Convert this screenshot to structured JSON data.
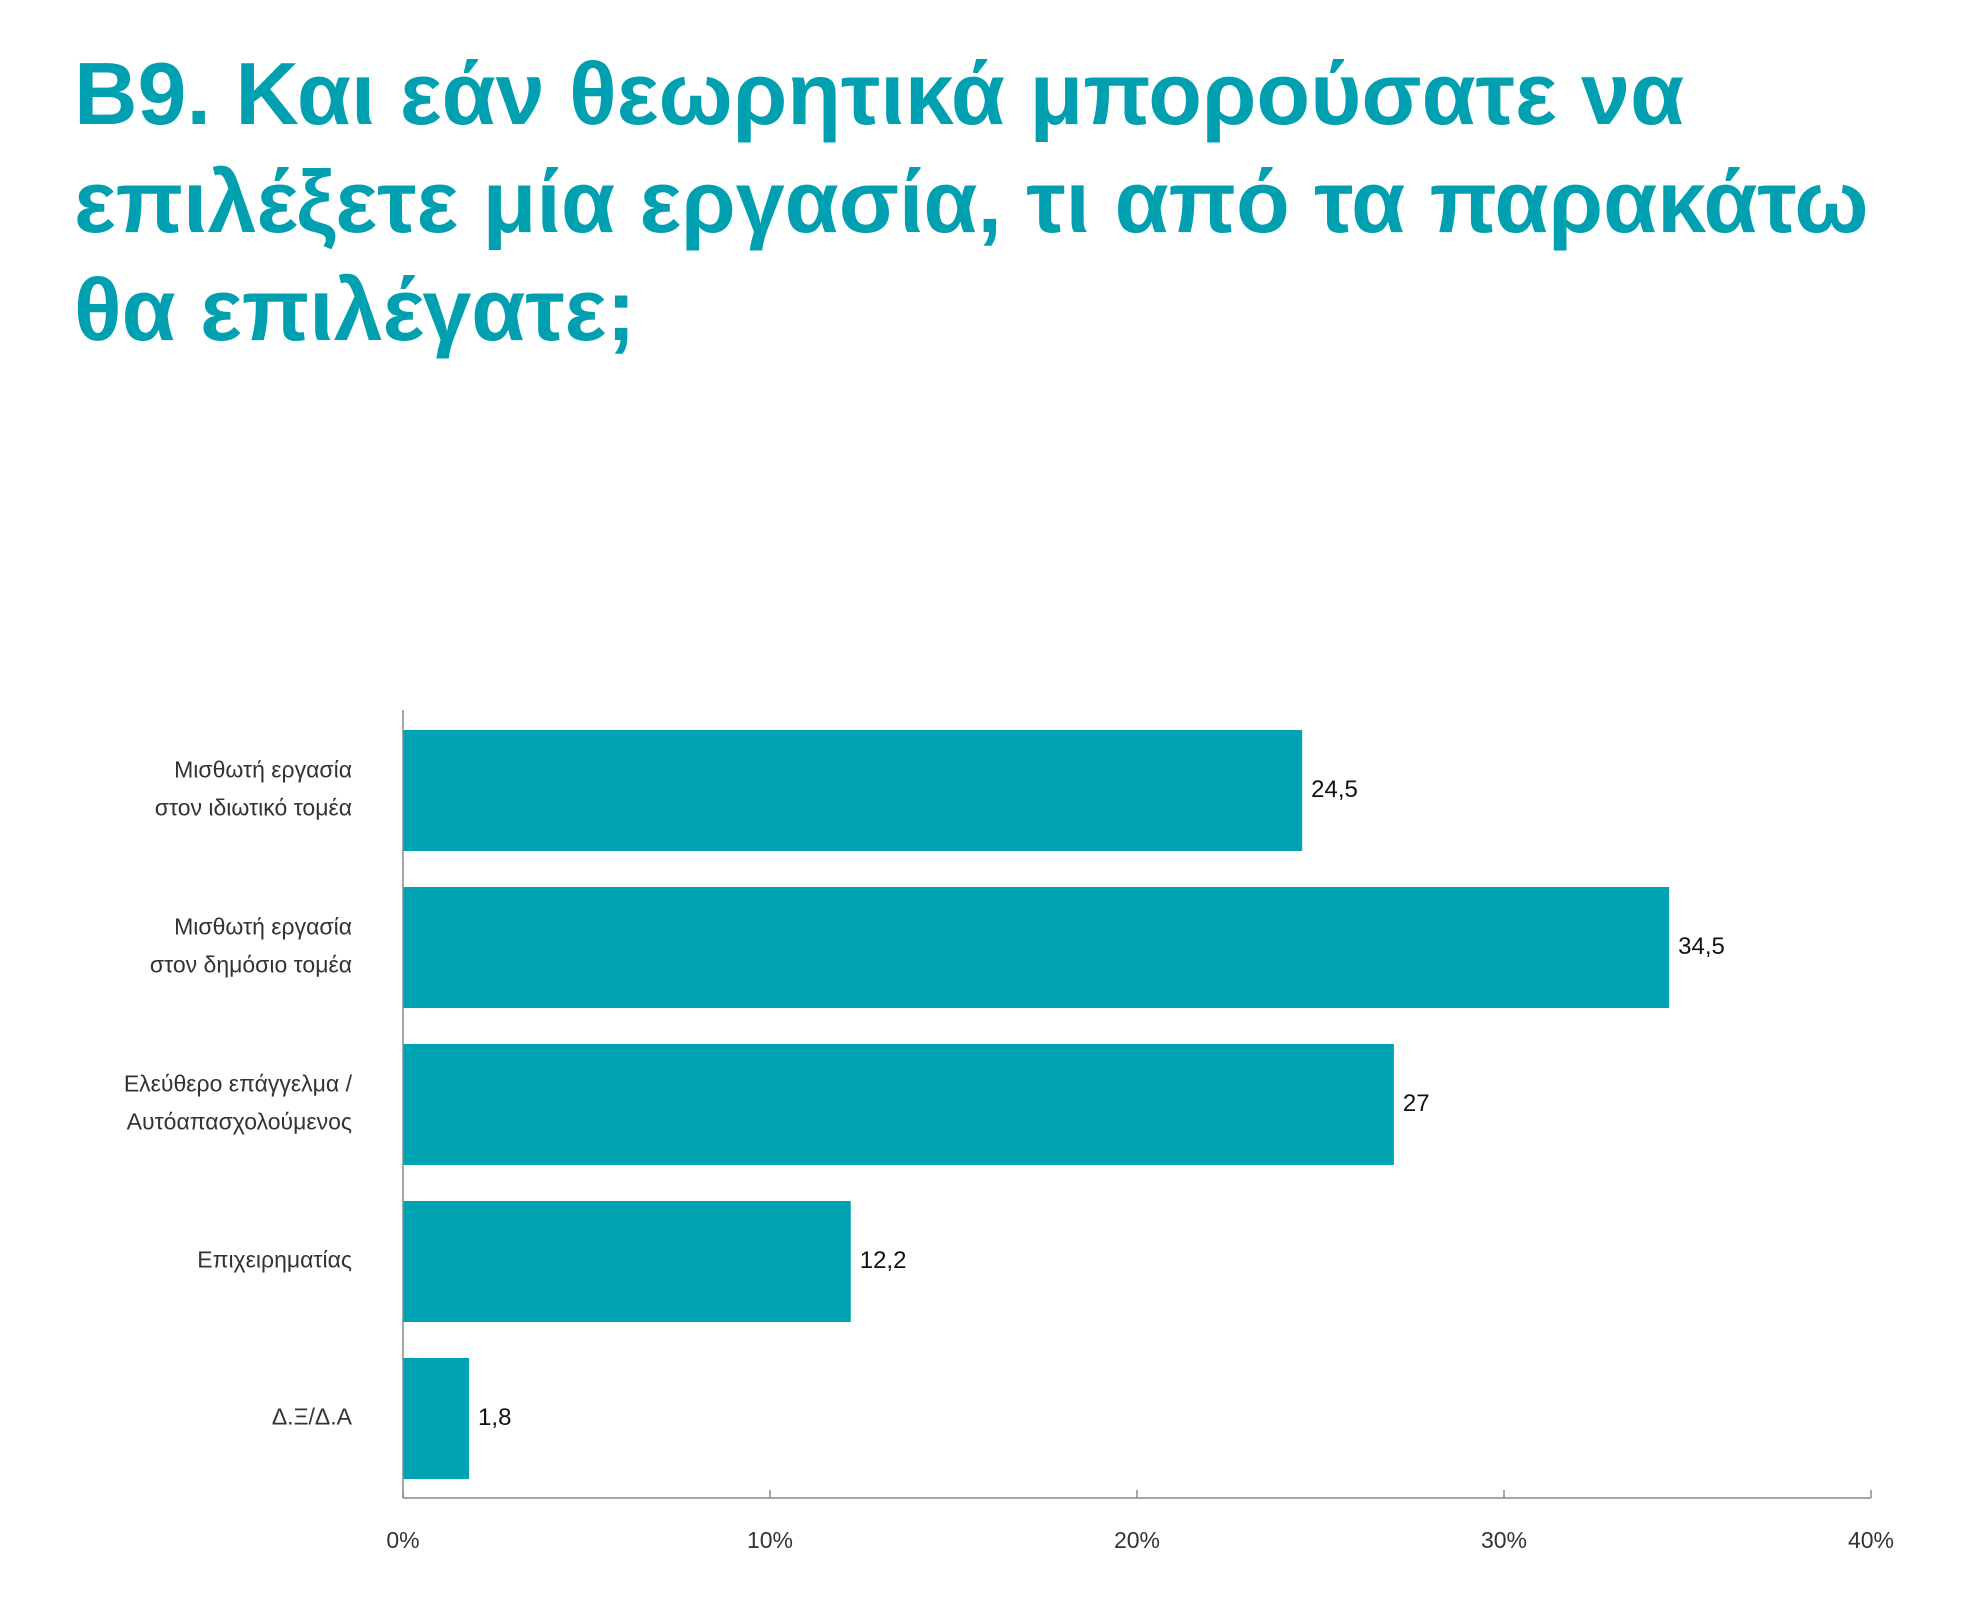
{
  "title_lines": [
    "B9. Και εάν θεωρητικά μπορούσατε να",
    "επιλέξετε μία εργασία, τι από τα παρακάτω",
    "θα επιλέγατε;"
  ],
  "chart_data": {
    "type": "bar",
    "orientation": "horizontal",
    "title": "B9. Και εάν θεωρητικά μπορούσατε να επιλέξετε μία εργασία, τι από τα παρακάτω θα επιλέγατε;",
    "categories": [
      [
        "Μισθωτή εργασία",
        "στον ιδιωτικό τομέα"
      ],
      [
        "Μισθωτή εργασία",
        "στον δημόσιο τομέα"
      ],
      [
        "Ελεύθερο επάγγελμα /",
        "Αυτόαπασχολούμενος"
      ],
      [
        "Επιχειρηματίας"
      ],
      [
        "Δ.Ξ/Δ.Α"
      ]
    ],
    "values": [
      24.5,
      34.5,
      27,
      12.2,
      1.8
    ],
    "value_labels": [
      "24,5",
      "34,5",
      "27",
      "12,2",
      "1,8"
    ],
    "xlim": [
      0,
      40
    ],
    "xticks": [
      0,
      10,
      20,
      30,
      40
    ],
    "xtick_labels": [
      "0%",
      "10%",
      "20%",
      "30%",
      "40%"
    ],
    "xlabel": "",
    "ylabel": "",
    "bar_color": "#00a3b1",
    "grid": false,
    "legend": "none"
  },
  "colors": {
    "title": "#00a0b0",
    "bar": "#00a3b1",
    "axis": "#888888"
  }
}
